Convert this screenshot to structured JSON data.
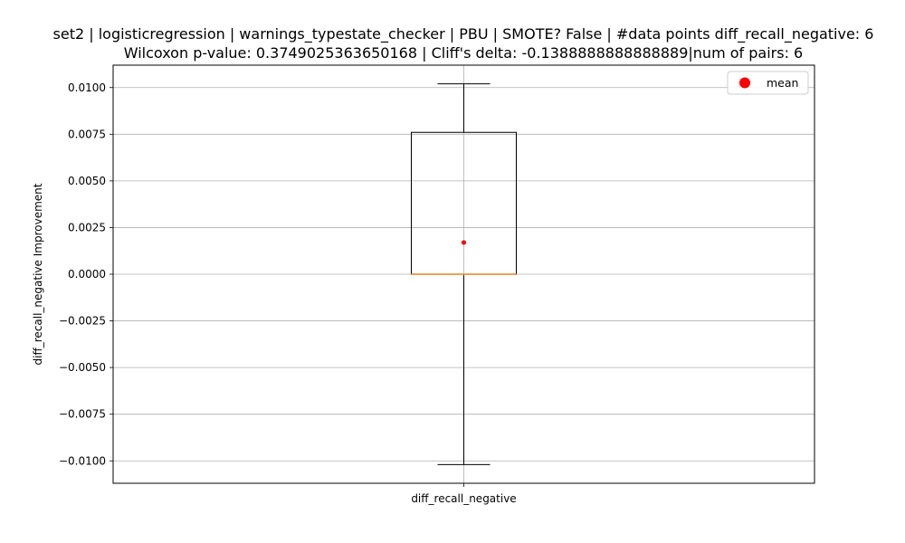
{
  "chart_data": {
    "type": "box",
    "title_lines": [
      "set2 | logisticregression | warnings_typestate_checker | PBU | SMOTE? False | #data points diff_recall_negative: 6",
      "Wilcoxon p-value: 0.3749025363650168 | Cliff's delta: -0.1388888888888889|num of pairs: 6"
    ],
    "xlabel": "",
    "ylabel": "diff_recall_negative Improvement",
    "categories": [
      "diff_recall_negative"
    ],
    "ylim": [
      -0.0112,
      0.0112
    ],
    "y_ticks": [
      -0.01,
      -0.0075,
      -0.005,
      -0.0025,
      0.0,
      0.0025,
      0.005,
      0.0075,
      0.01
    ],
    "y_tick_labels": [
      "−0.0100",
      "−0.0075",
      "−0.0050",
      "−0.0025",
      "0.0000",
      "0.0025",
      "0.0050",
      "0.0075",
      "0.0100"
    ],
    "grid": true,
    "boxes": [
      {
        "category": "diff_recall_negative",
        "whisker_low": -0.0102,
        "q1": 0.0,
        "median": 0.0,
        "q3": 0.0076,
        "whisker_high": 0.0102,
        "mean": 0.0017
      }
    ],
    "legend": {
      "position": "top-right",
      "entries": [
        {
          "label": "mean",
          "color": "#ff0000",
          "marker": "circle"
        }
      ]
    },
    "colors": {
      "box": "#000000",
      "median": "#e8924a",
      "mean": "#ff0000",
      "grid": "#b0b0b0"
    }
  }
}
